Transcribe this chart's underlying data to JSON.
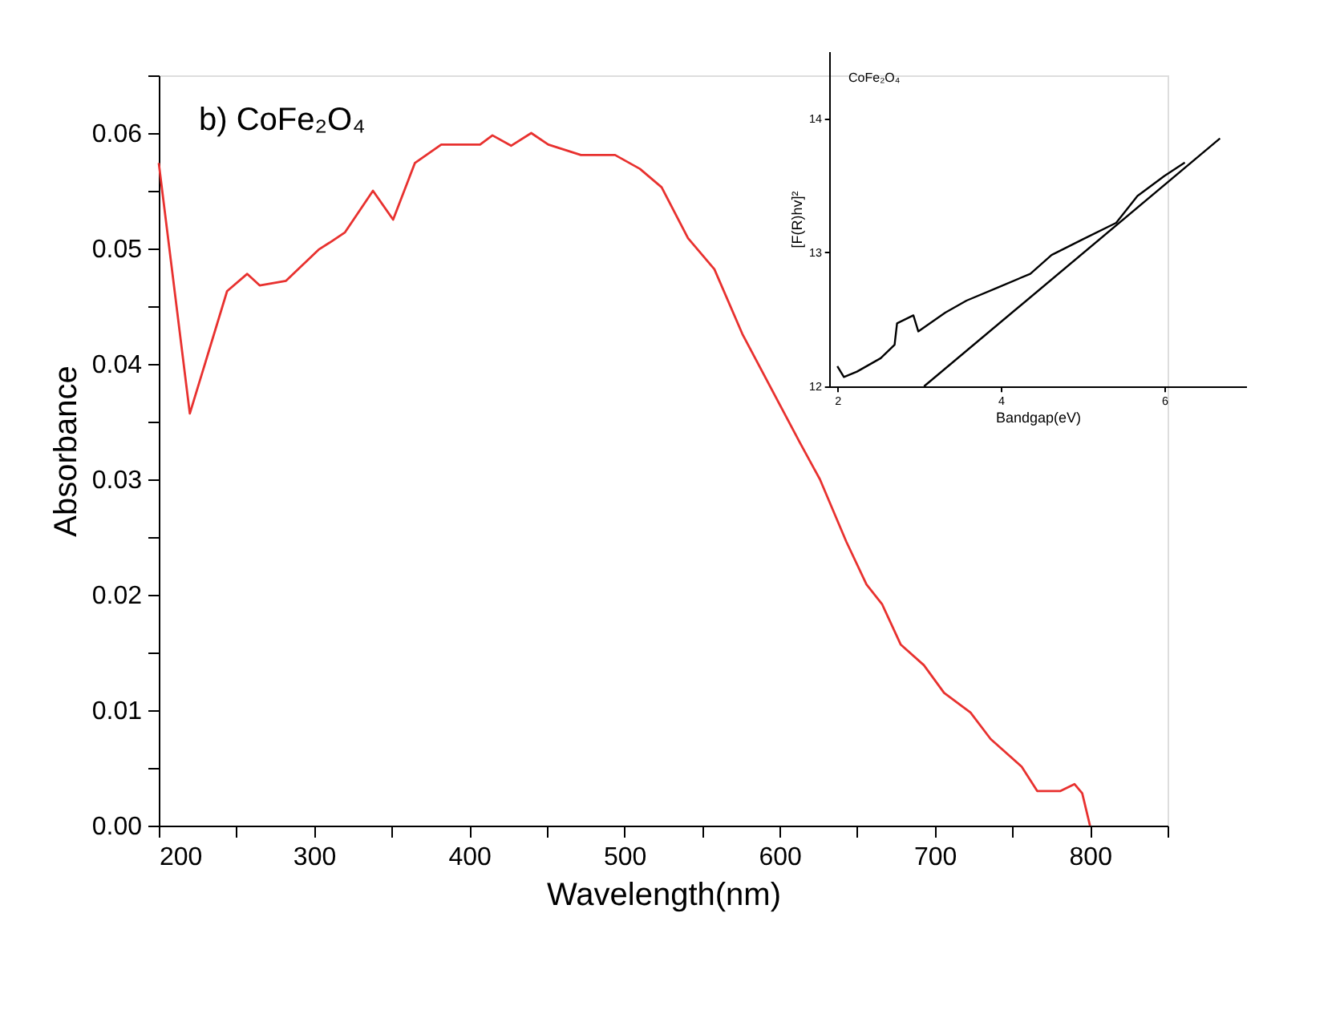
{
  "chart_data": [
    {
      "type": "line",
      "xlabel": "Wavelength(nm)",
      "ylabel": "Absorbance",
      "annotations": [
        "b) CoFe₂O₄"
      ],
      "xlim": [
        200,
        850
      ],
      "xticks": [
        200,
        {
          "value": 250,
          "label": null
        },
        300,
        {
          "value": 350,
          "label": null
        },
        400,
        {
          "value": 450,
          "label": null
        },
        500,
        {
          "value": 550,
          "label": null
        },
        600,
        {
          "value": 650,
          "label": null
        },
        700,
        {
          "value": 750,
          "label": null
        },
        800,
        {
          "value": 850,
          "label": null
        }
      ],
      "ylim": [
        0,
        0.065
      ],
      "yticks": [
        {
          "value": 0,
          "label": "0.00"
        },
        {
          "value": 0.005,
          "label": null
        },
        0.01,
        {
          "value": 0.015,
          "label": null
        },
        0.02,
        {
          "value": 0.025,
          "label": null
        },
        0.03,
        {
          "value": 0.035,
          "label": null
        },
        0.04,
        {
          "value": 0.045,
          "label": null
        },
        0.05,
        {
          "value": 0.055,
          "label": null
        },
        0.06,
        {
          "value": 0.065,
          "label": null
        }
      ],
      "grid": false,
      "series": [
        {
          "color": "#e8312f",
          "x": [
            200,
            220,
            244,
            257,
            265,
            282,
            303,
            310,
            320,
            338,
            351,
            365,
            382,
            407,
            415,
            427,
            440,
            451,
            472,
            494,
            510,
            524,
            541,
            558,
            576,
            613,
            626,
            643,
            656,
            666,
            678,
            693,
            706,
            723,
            736,
            756,
            766,
            781,
            790,
            795,
            800
          ],
          "values": [
            0.0574,
            0.0357,
            0.0463,
            0.0478,
            0.0468,
            0.0472,
            0.0499,
            0.0505,
            0.0514,
            0.055,
            0.0525,
            0.0574,
            0.059,
            0.059,
            0.0598,
            0.0589,
            0.06,
            0.059,
            0.0581,
            0.0581,
            0.0569,
            0.0553,
            0.0509,
            0.0482,
            0.0426,
            0.0332,
            0.03,
            0.0246,
            0.0209,
            0.0192,
            0.0157,
            0.0139,
            0.0115,
            0.0098,
            0.0075,
            0.0051,
            0.003,
            0.003,
            0.0036,
            0.0028,
            0.0
          ]
        }
      ]
    },
    {
      "type": "line",
      "xlabel": "Bandgap(eV)",
      "ylabel": "[F(R)hv]²",
      "annotations": [
        "CoFe₂O₄"
      ],
      "xlim": [
        1.9,
        7.0
      ],
      "xticks": [
        2,
        4,
        6
      ],
      "ylim": [
        12,
        14.5
      ],
      "yticks": [
        12,
        13,
        14
      ],
      "grid": false,
      "series": [
        {
          "color": "#000000",
          "x": [
            2.0,
            2.08,
            2.24,
            2.53,
            2.7,
            2.73,
            2.93,
            2.99,
            3.32,
            3.58,
            3.97,
            4.36,
            4.62,
            5.01,
            5.41,
            5.67,
            6.0,
            6.25
          ],
          "values": [
            12.15,
            12.07,
            12.11,
            12.21,
            12.31,
            12.47,
            12.53,
            12.41,
            12.55,
            12.64,
            12.74,
            12.84,
            12.98,
            13.1,
            13.22,
            13.42,
            13.57,
            13.67
          ]
        },
        {
          "color": "#000000",
          "x": [
            3.06,
            6.68
          ],
          "values": [
            12.0,
            13.85
          ]
        }
      ]
    }
  ]
}
